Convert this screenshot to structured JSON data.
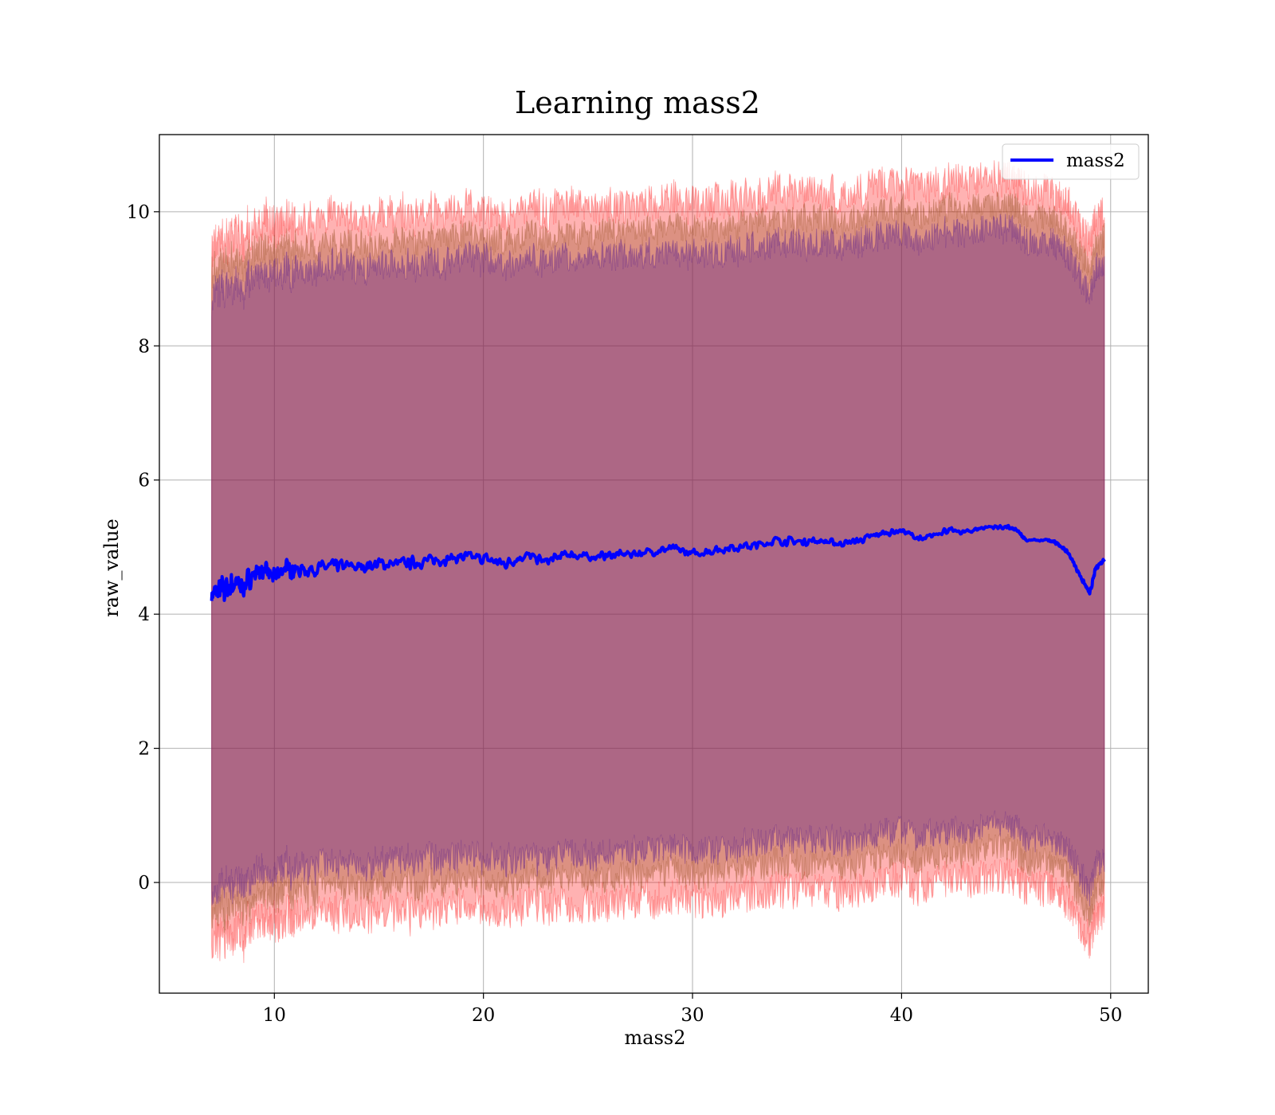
{
  "chart_data": {
    "type": "line",
    "title": "Learning mass2",
    "xlabel": "mass2",
    "ylabel": "raw_value",
    "xlim": [
      4.5,
      51.8
    ],
    "ylim": [
      -1.65,
      11.15
    ],
    "xticks": [
      10,
      20,
      30,
      40,
      50
    ],
    "yticks": [
      0,
      2,
      4,
      6,
      8,
      10
    ],
    "grid": true,
    "legend_position": "top-right",
    "series": [
      {
        "name": "mass2",
        "color": "#0000ff",
        "x": [
          7.0,
          7.5,
          8.0,
          8.5,
          9.0,
          9.5,
          10.0,
          10.5,
          11.0,
          12.0,
          13.0,
          14.0,
          15.0,
          16.0,
          17.0,
          18.0,
          19.0,
          20.0,
          21.0,
          22.0,
          23.0,
          24.0,
          25.0,
          26.0,
          27.0,
          28.0,
          29.0,
          30.0,
          31.0,
          32.0,
          33.0,
          34.0,
          35.0,
          36.0,
          37.0,
          38.0,
          39.0,
          40.0,
          41.0,
          42.0,
          43.0,
          44.0,
          45.0,
          45.5,
          46.0,
          47.0,
          47.5,
          48.0,
          48.5,
          49.0,
          49.3,
          49.7
        ],
        "y": [
          4.3,
          4.35,
          4.45,
          4.4,
          4.6,
          4.65,
          4.55,
          4.7,
          4.65,
          4.68,
          4.72,
          4.7,
          4.75,
          4.75,
          4.78,
          4.82,
          4.85,
          4.83,
          4.75,
          4.88,
          4.78,
          4.9,
          4.85,
          4.88,
          4.9,
          4.93,
          4.98,
          4.9,
          4.95,
          5.0,
          5.02,
          5.1,
          5.08,
          5.1,
          5.05,
          5.1,
          5.2,
          5.25,
          5.1,
          5.25,
          5.22,
          5.3,
          5.3,
          5.25,
          5.1,
          5.1,
          5.05,
          4.9,
          4.6,
          4.3,
          4.7,
          4.82
        ],
        "noise": [
          0.12,
          0.2,
          0.18,
          0.15,
          0.12,
          0.1,
          0.1,
          0.1,
          0.1,
          0.08,
          0.08,
          0.08,
          0.08,
          0.08,
          0.07,
          0.07,
          0.07,
          0.07,
          0.07,
          0.06,
          0.06,
          0.05,
          0.05,
          0.05,
          0.05,
          0.05,
          0.05,
          0.05,
          0.05,
          0.05,
          0.05,
          0.05,
          0.05,
          0.05,
          0.04,
          0.04,
          0.04,
          0.04,
          0.04,
          0.04,
          0.03,
          0.03,
          0.03,
          0.02,
          0.02,
          0.02,
          0.02,
          0.02,
          0.03,
          0.03,
          0.03,
          0.02
        ]
      }
    ],
    "bands": [
      {
        "name": "",
        "color": "#ff0000",
        "opacity": 0.3,
        "half_width": 5.2,
        "roughness": 0.28
      },
      {
        "name": "",
        "color": "#8b4513",
        "opacity": 0.3,
        "half_width": 4.8,
        "roughness": 0.22
      },
      {
        "name": "",
        "color": "#551a8b",
        "opacity": 0.35,
        "half_width": 4.45,
        "roughness": 0.22
      }
    ]
  }
}
